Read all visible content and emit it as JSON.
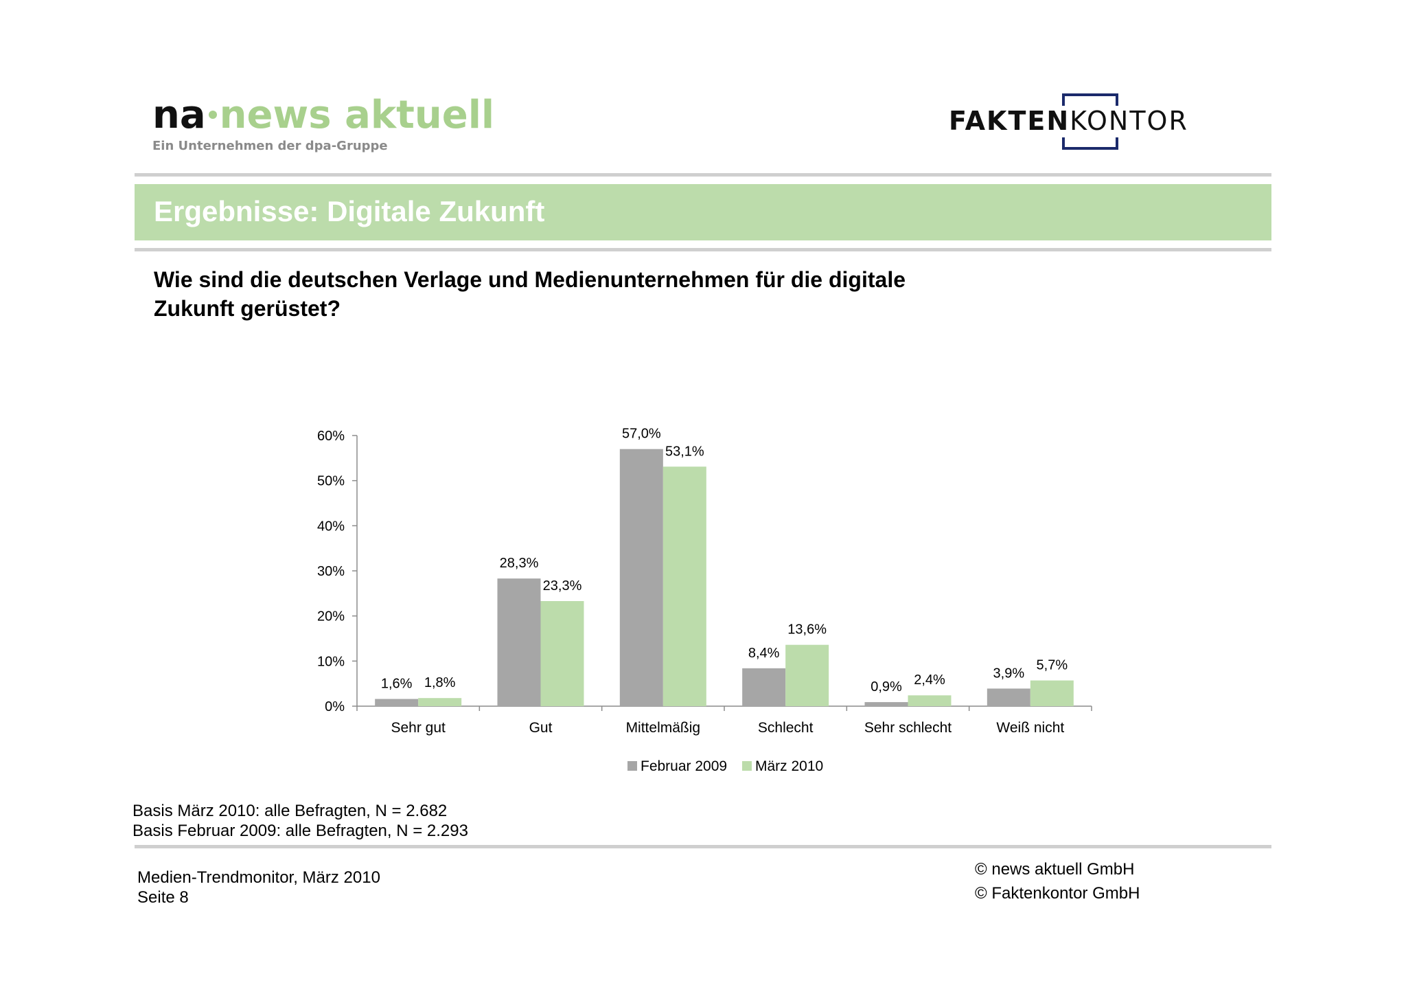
{
  "logos": {
    "left": {
      "na": "na",
      "name": "news aktuell",
      "tagline": "Ein Unternehmen der dpa-Gruppe"
    },
    "right": {
      "bold": "FAKTEN",
      "light": "KONTOR"
    }
  },
  "slide": {
    "title": "Ergebnisse: Digitale Zukunft",
    "question_line1": "Wie sind die deutschen Verlage und Medienunternehmen für die digitale",
    "question_line2": "Zukunft gerüstet?"
  },
  "chart_data": {
    "type": "bar",
    "categories": [
      "Sehr gut",
      "Gut",
      "Mittelmäßig",
      "Schlecht",
      "Sehr schlecht",
      "Weiß nicht"
    ],
    "series": [
      {
        "name": "Februar 2009",
        "color": "#a6a6a6",
        "values": [
          1.6,
          28.3,
          57.0,
          8.4,
          0.9,
          3.9
        ],
        "labels": [
          "1,6%",
          "28,3%",
          "57,0%",
          "8,4%",
          "0,9%",
          "3,9%"
        ]
      },
      {
        "name": "März 2010",
        "color": "#bcdcab",
        "values": [
          1.8,
          23.3,
          53.1,
          13.6,
          2.4,
          5.7
        ],
        "labels": [
          "1,8%",
          "23,3%",
          "53,1%",
          "13,6%",
          "2,4%",
          "5,7%"
        ]
      }
    ],
    "yticks": [
      "0%",
      "10%",
      "20%",
      "30%",
      "40%",
      "50%",
      "60%"
    ],
    "ylim": [
      0,
      60
    ],
    "grid": false,
    "legend": "bottom-center"
  },
  "basis": {
    "line1": "Basis März 2010: alle Befragten, N = 2.682",
    "line2": "Basis Februar 2009: alle Befragten, N = 2.293"
  },
  "footer": {
    "left_line1": "Medien-Trendmonitor, März 2010",
    "left_line2": "Seite 8",
    "right_line1": "© news aktuell GmbH",
    "right_line2": "© Faktenkontor GmbH"
  }
}
